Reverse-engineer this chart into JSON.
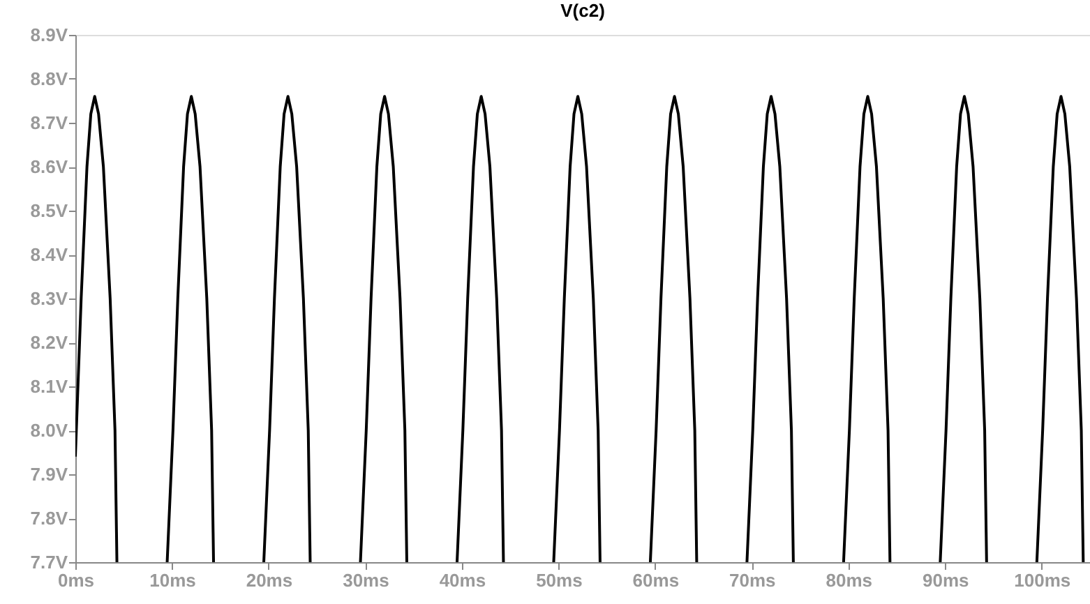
{
  "chart_data": {
    "type": "line",
    "title": "V(c2)",
    "grid": false,
    "marker": "none",
    "line_style": "solid",
    "xlim": [
      0,
      105
    ],
    "xticks": [
      {
        "value": 0,
        "label": "0ms"
      },
      {
        "value": 10,
        "label": "10ms"
      },
      {
        "value": 20,
        "label": "20ms"
      },
      {
        "value": 30,
        "label": "30ms"
      },
      {
        "value": 40,
        "label": "40ms"
      },
      {
        "value": 50,
        "label": "50ms"
      },
      {
        "value": 60,
        "label": "60ms"
      },
      {
        "value": 70,
        "label": "70ms"
      },
      {
        "value": 80,
        "label": "80ms"
      },
      {
        "value": 90,
        "label": "90ms"
      },
      {
        "value": 100,
        "label": "100ms"
      }
    ],
    "ylim": [
      7.7,
      8.9
    ],
    "yticks": [
      {
        "value": 7.7,
        "label": "7.7V"
      },
      {
        "value": 7.8,
        "label": "7.8V"
      },
      {
        "value": 7.9,
        "label": "7.9V"
      },
      {
        "value": 8.0,
        "label": "8.0V"
      },
      {
        "value": 8.1,
        "label": "8.1V"
      },
      {
        "value": 8.2,
        "label": "8.2V"
      },
      {
        "value": 8.3,
        "label": "8.3V"
      },
      {
        "value": 8.4,
        "label": "8.4V"
      },
      {
        "value": 8.5,
        "label": "8.5V"
      },
      {
        "value": 8.6,
        "label": "8.6V"
      },
      {
        "value": 8.7,
        "label": "8.7V"
      },
      {
        "value": 8.8,
        "label": "8.8V"
      },
      {
        "value": 8.9,
        "label": "8.9V"
      }
    ],
    "series": [
      {
        "color": "#000000",
        "x": [
          0,
          0.6,
          1.2,
          1.6,
          2,
          2.4,
          2.9,
          3.6,
          4.1,
          4.3,
          7,
          9.5,
          10.1,
          10.6,
          11.2,
          11.6,
          12,
          12.4,
          12.9,
          13.6,
          14.1,
          14.3,
          17,
          19.5,
          20.1,
          20.6,
          21.2,
          21.6,
          22,
          22.4,
          22.9,
          23.6,
          24.1,
          24.3,
          27,
          29.5,
          30.1,
          30.6,
          31.2,
          31.6,
          32,
          32.4,
          32.9,
          33.6,
          34.1,
          34.3,
          37,
          39.5,
          40.1,
          40.6,
          41.2,
          41.6,
          42,
          42.4,
          42.9,
          43.6,
          44.1,
          44.3,
          47,
          49.5,
          50.1,
          50.6,
          51.2,
          51.6,
          52,
          52.4,
          52.9,
          53.6,
          54.1,
          54.3,
          57,
          59.5,
          60.1,
          60.6,
          61.2,
          61.6,
          62,
          62.4,
          62.9,
          63.6,
          64.1,
          64.3,
          67,
          69.5,
          70.1,
          70.6,
          71.2,
          71.6,
          72,
          72.4,
          72.9,
          73.6,
          74.1,
          74.3,
          77,
          79.5,
          80.1,
          80.6,
          81.2,
          81.6,
          82,
          82.4,
          82.9,
          83.6,
          84.1,
          84.3,
          87,
          89.5,
          90.1,
          90.6,
          91.2,
          91.6,
          92,
          92.4,
          92.9,
          93.6,
          94.1,
          94.3,
          97,
          99.5,
          100.1,
          100.6,
          101.2,
          101.6,
          102,
          102.4,
          102.9,
          103.6,
          104.1,
          104.3
        ],
        "values": [
          7.94,
          8.3,
          8.6,
          8.72,
          8.76,
          8.72,
          8.6,
          8.3,
          8.0,
          7.7,
          null,
          7.7,
          8.0,
          8.3,
          8.6,
          8.72,
          8.76,
          8.72,
          8.6,
          8.3,
          8.0,
          7.7,
          null,
          7.7,
          8.0,
          8.3,
          8.6,
          8.72,
          8.76,
          8.72,
          8.6,
          8.3,
          8.0,
          7.7,
          null,
          7.7,
          8.0,
          8.3,
          8.6,
          8.72,
          8.76,
          8.72,
          8.6,
          8.3,
          8.0,
          7.7,
          null,
          7.7,
          8.0,
          8.3,
          8.6,
          8.72,
          8.76,
          8.72,
          8.6,
          8.3,
          8.0,
          7.7,
          null,
          7.7,
          8.0,
          8.3,
          8.6,
          8.72,
          8.76,
          8.72,
          8.6,
          8.3,
          8.0,
          7.7,
          null,
          7.7,
          8.0,
          8.3,
          8.6,
          8.72,
          8.76,
          8.72,
          8.6,
          8.3,
          8.0,
          7.7,
          null,
          7.7,
          8.0,
          8.3,
          8.6,
          8.72,
          8.76,
          8.72,
          8.6,
          8.3,
          8.0,
          7.7,
          null,
          7.7,
          8.0,
          8.3,
          8.6,
          8.72,
          8.76,
          8.72,
          8.6,
          8.3,
          8.0,
          7.7,
          null,
          7.7,
          8.0,
          8.3,
          8.6,
          8.72,
          8.76,
          8.72,
          8.6,
          8.3,
          8.0,
          7.7,
          null,
          7.7,
          8.0,
          8.3,
          8.6,
          8.72,
          8.76,
          8.72,
          8.6,
          8.3,
          8.0,
          7.7
        ]
      }
    ]
  }
}
